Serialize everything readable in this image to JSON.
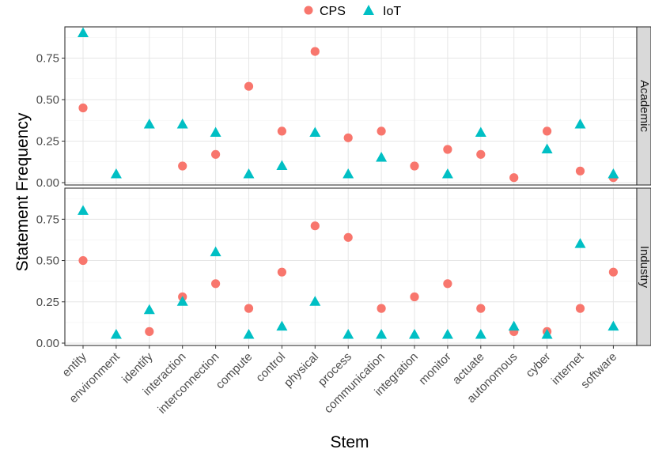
{
  "chart_data": {
    "type": "scatter",
    "ylabel": "Statement Frequency",
    "xlabel": "Stem",
    "legend_position": "top",
    "grid": true,
    "ylim": [
      0,
      0.9
    ],
    "yticks": [
      0.0,
      0.25,
      0.5,
      0.75
    ],
    "ytick_labels": [
      "0.00",
      "0.25",
      "0.50",
      "0.75"
    ],
    "categories": [
      "entity",
      "environment",
      "identify",
      "interaction",
      "interconnection",
      "compute",
      "control",
      "physical",
      "process",
      "communication",
      "integration",
      "monitor",
      "actuate",
      "autonomous",
      "cyber",
      "internet",
      "software"
    ],
    "series": [
      {
        "name": "CPS",
        "color": "#F8766D",
        "marker": "circle"
      },
      {
        "name": "IoT",
        "color": "#00BFC4",
        "marker": "triangle"
      }
    ],
    "panels": [
      {
        "label": "Academic",
        "CPS": [
          0.45,
          null,
          null,
          0.1,
          0.17,
          0.58,
          0.31,
          0.79,
          0.27,
          0.31,
          0.1,
          0.2,
          0.17,
          0.03,
          0.31,
          0.07,
          0.03
        ],
        "IoT": [
          0.9,
          0.05,
          0.35,
          0.35,
          0.3,
          0.05,
          0.1,
          0.3,
          0.05,
          0.15,
          null,
          0.05,
          0.3,
          null,
          0.2,
          0.35,
          0.05
        ]
      },
      {
        "label": "Industry",
        "CPS": [
          0.5,
          null,
          0.07,
          0.28,
          0.36,
          0.21,
          0.43,
          0.71,
          0.64,
          0.21,
          0.28,
          0.36,
          0.21,
          0.07,
          0.07,
          0.21,
          0.43
        ],
        "IoT": [
          0.8,
          0.05,
          0.2,
          0.25,
          0.55,
          0.05,
          0.1,
          0.25,
          0.05,
          0.05,
          0.05,
          0.05,
          0.05,
          0.1,
          0.05,
          0.6,
          0.1
        ]
      }
    ]
  }
}
